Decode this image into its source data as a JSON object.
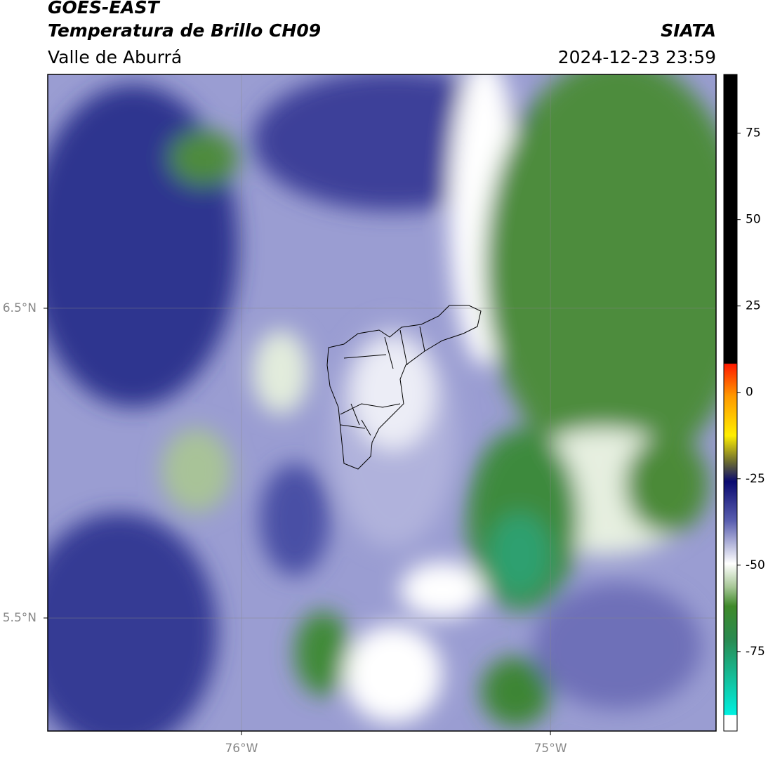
{
  "header": {
    "title": "GOES-EAST",
    "subtitle": "Temperatura de Brillo CH09",
    "region": "Valle de Aburrá",
    "source": "SIATA",
    "datetime": "2024-12-23 23:59"
  },
  "map": {
    "xlim": [
      -76.627,
      -74.464
    ],
    "ylim": [
      5.135,
      7.255
    ],
    "xticks": [
      {
        "value": -76,
        "label": "76°W"
      },
      {
        "value": -75,
        "label": "75°W"
      }
    ],
    "yticks": [
      {
        "value": 6.5,
        "label": "6.5°N"
      },
      {
        "value": 5.5,
        "label": "5.5°N"
      }
    ],
    "grid": true
  },
  "colorbar": {
    "lim": [
      -98,
      92
    ],
    "ticks": [
      75,
      50,
      25,
      0,
      -25,
      -50,
      -75
    ]
  }
}
